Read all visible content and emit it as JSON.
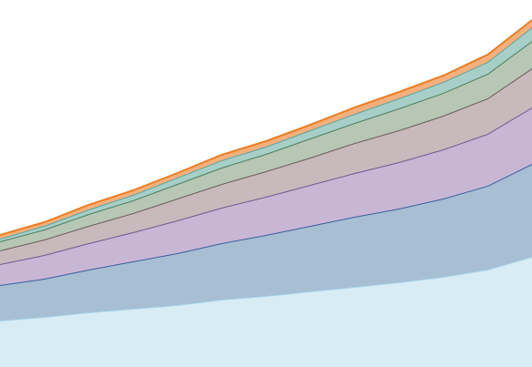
{
  "chart_data": {
    "type": "stacked-area",
    "categories": [
      null,
      null,
      null,
      null,
      null,
      null,
      null,
      null,
      null,
      null,
      null,
      null,
      null
    ],
    "ylim": [
      0,
      403
    ],
    "series": [
      {
        "color": "#a8d4ea",
        "fill": "#d8ecf6",
        "values": [
          51,
          55,
          60,
          64,
          68,
          74,
          78,
          83,
          88,
          93,
          99,
          107,
          121
        ]
      },
      {
        "color": "#3d5f99",
        "fill": "#a7bed3",
        "values": [
          39,
          42,
          47,
          52,
          57,
          62,
          67,
          72,
          77,
          81,
          86,
          92,
          102
        ]
      },
      {
        "color": "#6e5a8f",
        "fill": "#c7b7d5",
        "values": [
          23,
          26,
          29,
          32,
          36,
          39,
          42,
          45,
          48,
          51,
          54,
          57,
          62
        ]
      },
      {
        "color": "#6e5d5a",
        "fill": "#c8b9bd",
        "values": [
          15,
          17,
          19,
          21,
          24,
          26,
          28,
          30,
          33,
          35,
          37,
          39,
          43
        ]
      },
      {
        "color": "#4f7d5a",
        "fill": "#b7c7b4",
        "values": [
          10,
          11,
          13,
          14,
          16,
          18,
          19,
          21,
          22,
          24,
          25,
          27,
          30
        ]
      },
      {
        "color": "#58a6a0",
        "fill": "#a7cfc8",
        "values": [
          3,
          4,
          5,
          6,
          7,
          8,
          8,
          9,
          10,
          11,
          12,
          13,
          15
        ]
      },
      {
        "color": "#f07d1e",
        "fill": "#f0b080",
        "values": [
          4,
          4,
          5,
          5,
          5,
          6,
          6,
          6,
          7,
          7,
          7,
          8,
          8
        ]
      }
    ]
  }
}
